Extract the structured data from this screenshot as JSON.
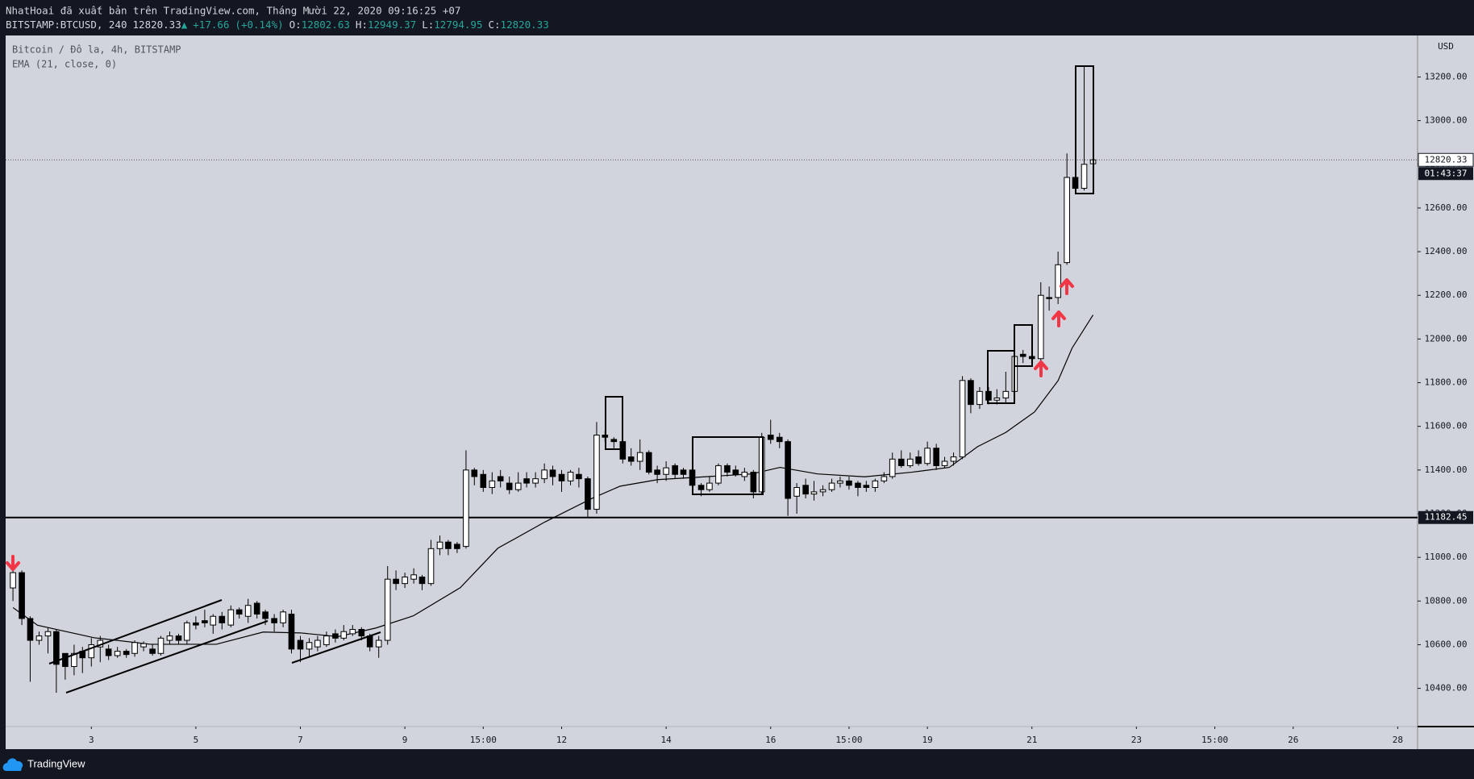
{
  "header": {
    "publisher": "NhatHoai đã xuất bản trên TradingView.com, Tháng Mười 22, 2020 09:16:25 +07",
    "symbol": "BITSTAMP:BTCUSD, 240",
    "arrow": "▲",
    "change": "+17.66",
    "change_pct": "(+0.14%)",
    "o": "O:",
    "h": "H:",
    "l": "L:",
    "c": "C:"
  },
  "chart_data": {
    "type": "candlestick",
    "title": "Bitcoin / Đô la, 4h, BITSTAMP",
    "currency": "USD",
    "x": [
      1.5,
      1.67,
      1.83,
      2,
      2.17,
      2.33,
      2.5,
      2.67,
      2.83,
      3,
      3.17,
      3.33,
      3.5,
      3.67,
      3.83,
      4,
      4.17,
      4.33,
      4.5,
      4.67,
      4.83,
      5,
      5.17,
      5.33,
      5.5,
      5.67,
      5.83,
      6,
      6.17,
      6.33,
      6.5,
      6.67,
      6.83,
      7,
      7.17,
      7.33,
      7.5,
      7.67,
      7.83,
      8,
      8.17,
      8.33,
      8.5,
      8.67,
      8.83,
      9,
      9.17,
      9.33,
      9.5,
      9.67,
      9.83,
      10,
      10.17,
      10.33,
      10.5,
      10.67,
      10.83,
      11,
      11.17,
      11.33,
      11.5,
      11.67,
      11.83,
      12,
      12.17,
      12.33,
      12.5,
      12.67,
      12.83,
      13,
      13.17,
      13.33,
      13.5,
      13.67,
      13.83,
      14,
      14.17,
      14.33,
      14.5,
      14.67,
      14.83,
      15,
      15.17,
      15.33,
      15.5,
      15.67,
      15.83,
      16,
      16.17,
      16.33,
      16.5,
      16.67,
      16.83,
      17,
      17.17,
      17.33,
      17.5,
      17.67,
      17.83,
      18,
      18.17,
      18.33,
      18.5,
      18.67,
      18.83,
      19,
      19.17,
      19.33,
      19.5,
      19.67,
      19.83,
      20,
      20.17,
      20.33,
      20.5,
      20.67,
      20.83,
      21,
      21.17,
      21.33,
      21.5,
      21.67,
      21.83,
      22,
      22.17
    ],
    "open": [
      10860,
      10930,
      10720,
      10620,
      10640,
      10660,
      10560,
      10500,
      10570,
      10540,
      10590,
      10580,
      10550,
      10570,
      10560,
      10590,
      10580,
      10560,
      10620,
      10640,
      10620,
      10700,
      10710,
      10690,
      10730,
      10690,
      10760,
      10730,
      10790,
      10750,
      10720,
      10700,
      10740,
      10620,
      10580,
      10590,
      10600,
      10650,
      10630,
      10650,
      10670,
      10640,
      10590,
      10620,
      10900,
      10880,
      10900,
      10910,
      10880,
      11040,
      11070,
      11060,
      11050,
      11400,
      11380,
      11320,
      11370,
      11340,
      11310,
      11360,
      11340,
      11360,
      11400,
      11380,
      11350,
      11380,
      11360,
      11220,
      11560,
      11540,
      11530,
      11460,
      11440,
      11480,
      11400,
      11380,
      11420,
      11400,
      11400,
      11330,
      11310,
      11340,
      11420,
      11400,
      11370,
      11390,
      11300,
      11560,
      11550,
      11530,
      11280,
      11330,
      11290,
      11300,
      11310,
      11340,
      11350,
      11340,
      11330,
      11320,
      11350,
      11370,
      11450,
      11420,
      11460,
      11430,
      11500,
      11420,
      11440,
      11460,
      11810,
      11700,
      11760,
      11720,
      11730,
      11760,
      11930,
      11920,
      11910,
      12190,
      12190,
      12350,
      12740,
      12690,
      12802.63
    ],
    "high": [
      10960,
      10940,
      10730,
      10660,
      10680,
      10670,
      10560,
      10600,
      10590,
      10630,
      10640,
      10600,
      10590,
      10580,
      10620,
      10615,
      10600,
      10640,
      10660,
      10650,
      10710,
      10730,
      10760,
      10740,
      10750,
      10780,
      10770,
      10810,
      10800,
      10760,
      10740,
      10760,
      10760,
      10640,
      10630,
      10640,
      10660,
      10670,
      10690,
      10690,
      10680,
      10650,
      10640,
      10960,
      10940,
      10930,
      10950,
      10920,
      11080,
      11100,
      11080,
      11070,
      11490,
      11410,
      11400,
      11390,
      11400,
      11370,
      11390,
      11390,
      11390,
      11430,
      11420,
      11400,
      11400,
      11410,
      11370,
      11620,
      11580,
      11550,
      11560,
      11500,
      11540,
      11490,
      11420,
      11440,
      11430,
      11410,
      11420,
      11340,
      11370,
      11430,
      11430,
      11420,
      11410,
      11400,
      11570,
      11630,
      11570,
      11540,
      11340,
      11360,
      11350,
      11330,
      11360,
      11370,
      11370,
      11350,
      11350,
      11360,
      11390,
      11480,
      11490,
      11480,
      11490,
      11530,
      11520,
      11460,
      11480,
      11830,
      11820,
      11780,
      11780,
      11770,
      11850,
      11940,
      11950,
      11930,
      12260,
      12240,
      12400,
      12850,
      12760,
      13250,
      12949.37
    ],
    "low": [
      10800,
      10690,
      10430,
      10600,
      10560,
      10380,
      10440,
      10460,
      10470,
      10500,
      10520,
      10530,
      10540,
      10540,
      10545,
      10570,
      10550,
      10550,
      10600,
      10600,
      10600,
      10670,
      10680,
      10650,
      10670,
      10680,
      10720,
      10700,
      10720,
      10690,
      10660,
      10680,
      10560,
      10520,
      10540,
      10570,
      10590,
      10610,
      10620,
      10640,
      10620,
      10570,
      10540,
      10600,
      10850,
      10860,
      10880,
      10850,
      10870,
      11010,
      11010,
      11020,
      11040,
      11330,
      11300,
      11290,
      11320,
      11290,
      11300,
      11320,
      11320,
      11340,
      11330,
      11300,
      11330,
      11320,
      11180,
      11200,
      11530,
      11500,
      11430,
      11420,
      11400,
      11380,
      11340,
      11350,
      11360,
      11360,
      11310,
      11280,
      11300,
      11330,
      11370,
      11370,
      11350,
      11270,
      11290,
      11520,
      11500,
      11190,
      11200,
      11270,
      11260,
      11280,
      11300,
      11320,
      11310,
      11280,
      11300,
      11300,
      11340,
      11360,
      11410,
      11410,
      11420,
      11420,
      11400,
      11410,
      11420,
      11450,
      11660,
      11680,
      11700,
      11700,
      11710,
      11740,
      11890,
      11880,
      11880,
      12130,
      12160,
      12340,
      12670,
      12680,
      12794.95
    ],
    "close": [
      10930,
      10720,
      10620,
      10640,
      10660,
      10510,
      10500,
      10560,
      10540,
      10600,
      10620,
      10550,
      10570,
      10555,
      10610,
      10605,
      10560,
      10630,
      10640,
      10620,
      10700,
      10690,
      10700,
      10730,
      10700,
      10760,
      10740,
      10780,
      10740,
      10720,
      10700,
      10750,
      10580,
      10580,
      10610,
      10620,
      10640,
      10630,
      10660,
      10670,
      10640,
      10590,
      10620,
      10900,
      10880,
      10910,
      10920,
      10880,
      11040,
      11070,
      11040,
      11040,
      11400,
      11370,
      11320,
      11350,
      11350,
      11310,
      11340,
      11340,
      11360,
      11400,
      11370,
      11350,
      11390,
      11360,
      11220,
      11560,
      11550,
      11530,
      11450,
      11440,
      11480,
      11390,
      11380,
      11410,
      11380,
      11380,
      11330,
      11310,
      11340,
      11420,
      11390,
      11380,
      11390,
      11300,
      11550,
      11540,
      11530,
      11270,
      11320,
      11290,
      11300,
      11310,
      11340,
      11350,
      11330,
      11320,
      11320,
      11350,
      11370,
      11450,
      11420,
      11450,
      11430,
      11500,
      11420,
      11440,
      11460,
      11810,
      11700,
      11760,
      11720,
      11730,
      11760,
      11920,
      11920,
      11910,
      12200,
      12185,
      12340,
      12740,
      12690,
      12800,
      12820.33
    ],
    "up_color": "#ffffff",
    "down_color": "#000000",
    "ema": {
      "name": "EMA (21, close, 0)",
      "color": "#000000",
      "x": [
        1.5,
        1.97,
        3.05,
        4.13,
        5.39,
        6.29,
        7,
        7.72,
        8.44,
        9.16,
        10.06,
        10.78,
        11.68,
        12.58,
        13.12,
        13.84,
        14.74,
        15.64,
        16.18,
        16.9,
        17.8,
        18.7,
        19.42,
        19.96,
        20.5,
        21.05,
        21.5,
        21.77,
        22.17
      ],
      "values": [
        10770,
        10689,
        10632,
        10602,
        10602,
        10658,
        10654,
        10637,
        10676,
        10732,
        10861,
        11042,
        11162,
        11270,
        11326,
        11356,
        11369,
        11382,
        11412,
        11382,
        11369,
        11390,
        11412,
        11507,
        11572,
        11666,
        11809,
        11959,
        12110
      ]
    },
    "hline": 11182.45,
    "countdown": "01:43:37",
    "xlim": [
      1.36,
      28.38
    ],
    "ylim": [
      10225,
      13390
    ],
    "xticks": [
      3,
      5,
      7,
      9,
      {
        "value": 10.5,
        "label": "15:00"
      },
      12,
      14,
      16,
      {
        "value": 17.5,
        "label": "15:00"
      },
      19,
      21,
      23,
      {
        "value": 24.5,
        "label": "15:00"
      },
      26,
      28
    ],
    "yticks": [
      {
        "value": 10400,
        "label": "10400.00"
      },
      {
        "value": 10600,
        "label": "10600.00"
      },
      {
        "value": 10800,
        "label": "10800.00"
      },
      {
        "value": 11000,
        "label": "11000.00"
      },
      {
        "value": 11200,
        "label": "11200.00"
      },
      {
        "value": 11400,
        "label": "11400.00"
      },
      {
        "value": 11600,
        "label": "11600.00"
      },
      {
        "value": 11800,
        "label": "11800.00"
      },
      {
        "value": 12000,
        "label": "12000.00"
      },
      {
        "value": 12200,
        "label": "12200.00"
      },
      {
        "value": 12400,
        "label": "12400.00"
      },
      {
        "value": 12600,
        "label": "12600.00"
      },
      {
        "value": 12800,
        "label": "12800.00"
      },
      {
        "value": 13000,
        "label": "13000.00"
      },
      {
        "value": 13200,
        "label": "13200.00"
      }
    ]
  },
  "footer": {
    "brand": "TradingView"
  }
}
